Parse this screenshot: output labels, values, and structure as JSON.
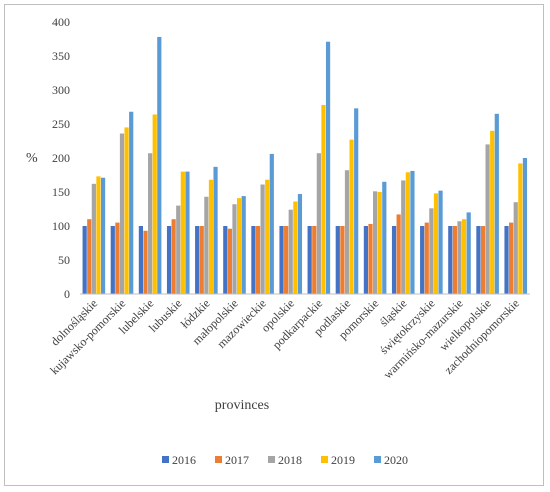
{
  "chart_data": {
    "type": "bar",
    "title": "",
    "xlabel": "provinces",
    "ylabel": "%",
    "ylim": [
      0,
      400
    ],
    "yticks": [
      0,
      50,
      100,
      150,
      200,
      250,
      300,
      350,
      400
    ],
    "grid": false,
    "legend_position": "bottom",
    "categories": [
      "dolnośląskie",
      "kujawsko-pomorskie",
      "lubelskie",
      "lubuskie",
      "łódzkie",
      "małopolskie",
      "mazowieckie",
      "opolskie",
      "podkarpackie",
      "podlaskie",
      "pomorskie",
      "śląskie",
      "świętokrzyskie",
      "warmińsko-mazurskie",
      "wielkopolskie",
      "zachodniopomorskie"
    ],
    "series": [
      {
        "name": "2016",
        "color": "#4472c4",
        "values": [
          100,
          100,
          100,
          100,
          100,
          100,
          100,
          100,
          100,
          100,
          100,
          100,
          100,
          100,
          100,
          100
        ]
      },
      {
        "name": "2017",
        "color": "#ed7d31",
        "values": [
          110,
          105,
          93,
          110,
          100,
          96,
          100,
          100,
          100,
          100,
          103,
          117,
          105,
          100,
          100,
          105
        ]
      },
      {
        "name": "2018",
        "color": "#a5a5a5",
        "values": [
          162,
          236,
          207,
          130,
          143,
          132,
          161,
          124,
          207,
          182,
          151,
          167,
          126,
          107,
          220,
          135
        ]
      },
      {
        "name": "2019",
        "color": "#ffc000",
        "values": [
          173,
          245,
          264,
          180,
          168,
          141,
          168,
          136,
          278,
          227,
          150,
          179,
          148,
          110,
          240,
          192
        ]
      },
      {
        "name": "2020",
        "color": "#5b9bd5",
        "values": [
          171,
          268,
          378,
          180,
          187,
          144,
          206,
          147,
          371,
          273,
          165,
          181,
          152,
          120,
          265,
          200
        ]
      }
    ]
  }
}
